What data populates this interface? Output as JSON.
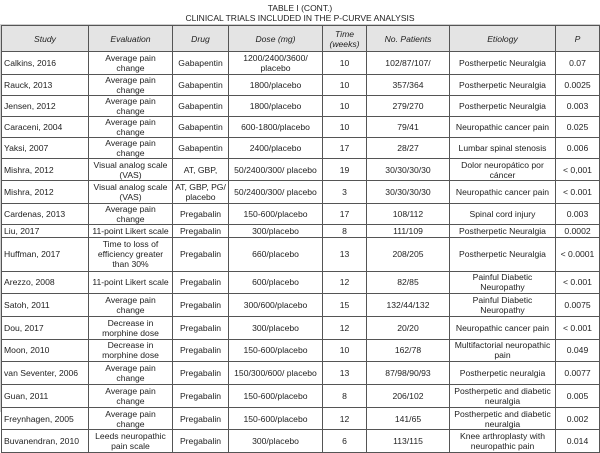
{
  "caption": {
    "title": "TABLE I (CONT.)",
    "subtitle": "CLINICAL TRIALS INCLUDED IN THE P-CURVE ANALYSIS"
  },
  "table": {
    "headers": [
      "Study",
      "Evaluation",
      "Drug",
      "Dose (mg)",
      "Time (weeks)",
      "No. Patients",
      "Etiology",
      "P"
    ],
    "rows": [
      {
        "h": "d",
        "c": [
          "Calkins, 2016",
          "Average pain change",
          "Gabapentin",
          "1200/2400/3600/ placebo",
          "10",
          "102/87/107/",
          "Postherpetic Neuralgia",
          "0.07"
        ]
      },
      {
        "h": "s",
        "c": [
          "Rauck, 2013",
          "Average pain change",
          "Gabapentin",
          "1800/placebo",
          "10",
          "357/364",
          "Postherpetic Neuralgia",
          "0.0025"
        ]
      },
      {
        "h": "s",
        "c": [
          "Jensen, 2012",
          "Average pain change",
          "Gabapentin",
          "1800/placebo",
          "10",
          "279/270",
          "Postherpetic Neuralgia",
          "0.003"
        ]
      },
      {
        "h": "s",
        "c": [
          "Caraceni, 2004",
          "Average pain change",
          "Gabapentin",
          "600-1800/placebo",
          "10",
          "79/41",
          "Neuropathic cancer pain",
          "0.025"
        ]
      },
      {
        "h": "s",
        "c": [
          "Yaksi, 2007",
          "Average pain change",
          "Gabapentin",
          "2400/placebo",
          "17",
          "28/27",
          "Lumbar spinal stenosis",
          "0.006"
        ]
      },
      {
        "h": "d",
        "c": [
          "Mishra, 2012",
          "Visual analog scale (VAS)",
          "AT, GBP,",
          "50/2400/300/ placebo",
          "19",
          "30/30/30/30",
          "Dolor neuropático por cáncer",
          "< 0,001"
        ]
      },
      {
        "h": "d",
        "c": [
          "Mishra, 2012",
          "Visual analog scale (VAS)",
          "AT, GBP, PG/ placebo",
          "50/2400/300/ placebo",
          "3",
          "30/30/30/30",
          "Neuropathic cancer pain",
          "< 0.001"
        ]
      },
      {
        "h": "s",
        "c": [
          "Cardenas, 2013",
          "Average pain change",
          "Pregabalin",
          "150-600/placebo",
          "17",
          "108/112",
          "Spinal cord injury",
          "0.003"
        ]
      },
      {
        "h": "s",
        "c": [
          "Liu, 2017",
          "11-point Likert scale",
          "Pregabalin",
          "300/placebo",
          "8",
          "111/109",
          "Postherpetic Neuralgia",
          "0.0002"
        ]
      },
      {
        "h": "t",
        "c": [
          "Huffman, 2017",
          "Time to loss of efficiency greater than 30%",
          "Pregabalin",
          "660/placebo",
          "13",
          "208/205",
          "Postherpetic Neuralgia",
          "< 0.0001"
        ]
      },
      {
        "h": "d",
        "c": [
          "Arezzo, 2008",
          "11-point Likert scale",
          "Pregabalin",
          "600/placebo",
          "12",
          "82/85",
          "Painful Diabetic Neuropathy",
          "< 0.001"
        ]
      },
      {
        "h": "d",
        "c": [
          "Satoh, 2011",
          "Average pain change",
          "Pregabalin",
          "300/600/placebo",
          "15",
          "132/44/132",
          "Painful Diabetic Neuropathy",
          "0.0075"
        ]
      },
      {
        "h": "d",
        "c": [
          "Dou, 2017",
          "Decrease in morphine dose",
          "Pregabalin",
          "300/placebo",
          "12",
          "20/20",
          "Neuropathic cancer pain",
          "< 0.001"
        ]
      },
      {
        "h": "d",
        "c": [
          "Moon, 2010",
          "Decrease in morphine dose",
          "Pregabalin",
          "150-600/placebo",
          "10",
          "162/78",
          "Multifactorial neuropathic pain",
          "0.049"
        ]
      },
      {
        "h": "d",
        "c": [
          "van Seventer, 2006",
          "Average pain change",
          "Pregabalin",
          "150/300/600/ placebo",
          "13",
          "87/98/90/93",
          "Postherpetic neuralgia",
          "0.0077"
        ]
      },
      {
        "h": "d",
        "c": [
          "Guan, 2011",
          "Average pain change",
          "Pregabalin",
          "150-600/placebo",
          "8",
          "206/102",
          "Postherpetic and diabetic neuralgia",
          "0.005"
        ]
      },
      {
        "h": "d",
        "c": [
          "Freynhagen, 2005",
          "Average pain change",
          "Pregabalin",
          "150-600/placebo",
          "12",
          "141/65",
          "Postherpetic and diabetic neuralgia",
          "0.002"
        ]
      },
      {
        "h": "d",
        "c": [
          "Buvanendran, 2010",
          "Leeds neuropathic pain scale",
          "Pregabalin",
          "300/placebo",
          "6",
          "113/115",
          "Knee arthroplasty with neuropathic pain",
          "0.014"
        ]
      }
    ]
  }
}
